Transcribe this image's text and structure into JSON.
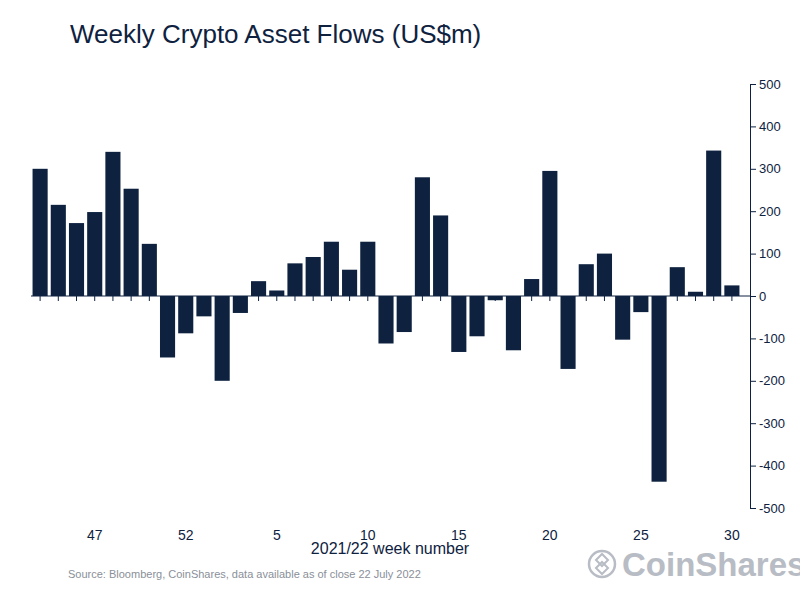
{
  "chart_data": {
    "type": "bar",
    "title": "Weekly Crypto Asset Flows (US$m)",
    "x_label": "2021/22 week number",
    "source": "Source: Bloomberg, CoinShares, data available as of close 22 July 2022",
    "logo": "CoinShares",
    "categories": [
      null,
      null,
      null,
      "47",
      null,
      null,
      null,
      null,
      "52",
      null,
      null,
      null,
      null,
      "5",
      null,
      null,
      null,
      null,
      "10",
      null,
      null,
      null,
      null,
      "15",
      null,
      null,
      null,
      null,
      "20",
      null,
      null,
      null,
      null,
      "25",
      null,
      null,
      null,
      null,
      "30"
    ],
    "values": [
      300,
      215,
      172,
      198,
      340,
      253,
      123,
      -145,
      -88,
      -48,
      -200,
      -40,
      35,
      13,
      77,
      92,
      128,
      62,
      128,
      -112,
      -85,
      280,
      190,
      -132,
      -95,
      -10,
      -128,
      40,
      295,
      -172,
      75,
      100,
      -103,
      -38,
      -438,
      68,
      10,
      343,
      25
    ],
    "color": "#0e2240",
    "ylim": [
      -500,
      500
    ],
    "yticks": [
      -500,
      -400,
      -300,
      -200,
      -100,
      0,
      100,
      200,
      300,
      400,
      500
    ],
    "grid": false
  }
}
